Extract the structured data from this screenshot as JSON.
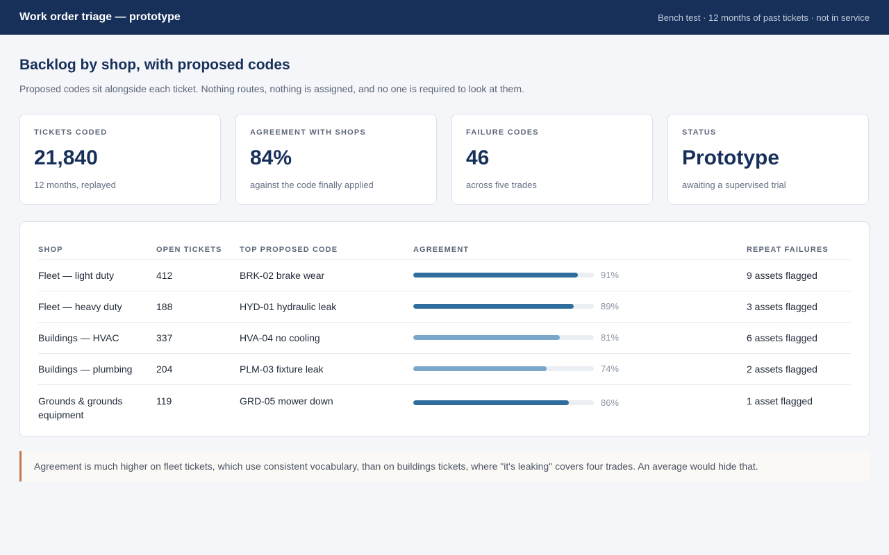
{
  "header": {
    "title": "Work order triage — prototype",
    "meta": "Bench test · 12 months of past tickets · not in service"
  },
  "page": {
    "title": "Backlog by shop, with proposed codes",
    "subtitle": "Proposed codes sit alongside each ticket. Nothing routes, nothing is assigned, and no one is required to look at them."
  },
  "stats": [
    {
      "label": "TICKETS CODED",
      "value": "21,840",
      "caption": "12 months, replayed"
    },
    {
      "label": "AGREEMENT WITH SHOPS",
      "value": "84%",
      "caption": "against the code finally applied"
    },
    {
      "label": "FAILURE CODES",
      "value": "46",
      "caption": "across five trades"
    },
    {
      "label": "STATUS",
      "value": "Prototype",
      "caption": "awaiting a supervised trial"
    }
  ],
  "table": {
    "headers": {
      "shop": "SHOP",
      "open": "OPEN TICKETS",
      "code": "TOP PROPOSED CODE",
      "agreement": "AGREEMENT",
      "repeat": "REPEAT FAILURES"
    },
    "rows": [
      {
        "shop": "Fleet — light duty",
        "open": "412",
        "code": "BRK-02 brake wear",
        "agreement": 0.91,
        "agreement_label": "91%",
        "bar_color": "#2f6e9c",
        "repeat": "9 assets flagged"
      },
      {
        "shop": "Fleet — heavy duty",
        "open": "188",
        "code": "HYD-01 hydraulic leak",
        "agreement": 0.89,
        "agreement_label": "89%",
        "bar_color": "#2f6e9c",
        "repeat": "3 assets flagged"
      },
      {
        "shop": "Buildings — HVAC",
        "open": "337",
        "code": "HVA-04 no cooling",
        "agreement": 0.81,
        "agreement_label": "81%",
        "bar_color": "#79a6c9",
        "repeat": "6 assets flagged"
      },
      {
        "shop": "Buildings — plumbing",
        "open": "204",
        "code": "PLM-03 fixture leak",
        "agreement": 0.74,
        "agreement_label": "74%",
        "bar_color": "#79a6c9",
        "repeat": "2 assets flagged"
      },
      {
        "shop": "Grounds & grounds equipment",
        "open": "119",
        "code": "GRD-05 mower down",
        "agreement": 0.86,
        "agreement_label": "86%",
        "bar_color": "#2f6e9c",
        "repeat": "1 asset flagged"
      }
    ]
  },
  "note": "Agreement is much higher on fleet tickets, which use consistent vocabulary, than on buildings tickets, where \"it's leaking\" covers four trades. An average would hide that."
}
